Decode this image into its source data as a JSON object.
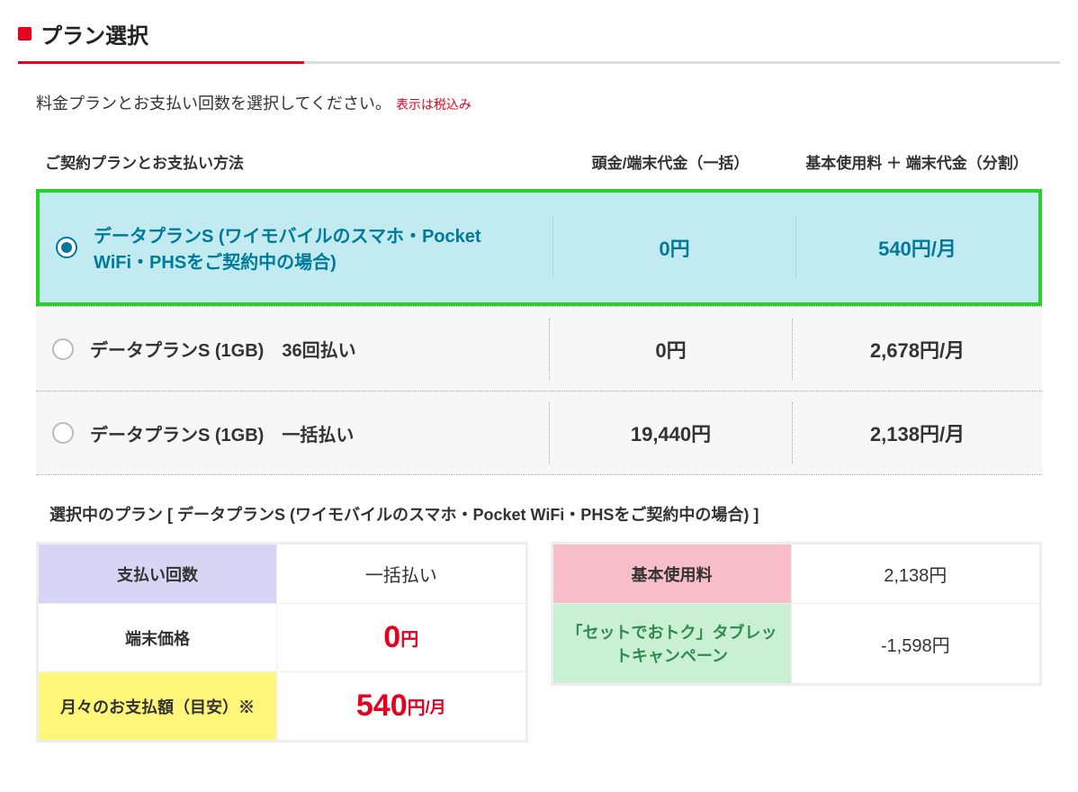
{
  "section": {
    "title": "プラン選択",
    "instruction": "料金プランとお支払い回数を選択してください。",
    "tax_note": "表示は税込み"
  },
  "headers": {
    "plan": "ご契約プランとお支払い方法",
    "down": "頭金/端末代金（一括）",
    "monthly": "基本使用料 ＋ 端末代金（分割）"
  },
  "plans": [
    {
      "label": "データプランS (ワイモバイルのスマホ・Pocket WiFi・PHSをご契約中の場合)",
      "down": "0円",
      "monthly": "540円/月",
      "selected": true
    },
    {
      "label": "データプランS (1GB)　36回払い",
      "down": "0円",
      "monthly": "2,678円/月",
      "selected": false
    },
    {
      "label": "データプランS (1GB)　一括払い",
      "down": "19,440円",
      "monthly": "2,138円/月",
      "selected": false
    }
  ],
  "selected_label": "選択中のプラン [ データプランS (ワイモバイルのスマホ・Pocket WiFi・PHSをご契約中の場合) ]",
  "summary_left": [
    {
      "label": "支払い回数",
      "value": "一括払い",
      "label_bg": "bg-purple",
      "value_class": ""
    },
    {
      "label": "端末価格",
      "value_num": "0",
      "value_unit": "円",
      "value_class": "val-red"
    },
    {
      "label": "月々のお支払額（目安）※",
      "value_num": "540",
      "value_unit": "円",
      "value_per": "/月",
      "label_bg": "bg-yellow",
      "value_class": "val-red"
    }
  ],
  "summary_right": [
    {
      "label": "基本使用料",
      "value": "2,138円",
      "label_bg": "bg-pink"
    },
    {
      "label": "「セットでおトク」タブレットキャンペーン",
      "value": "-1,598円",
      "label_bg": "bg-green"
    }
  ],
  "colors": {
    "accent_red": "#e4001e",
    "select_teal": "#007a9c",
    "select_border": "#2bcf2b",
    "select_bg": "#c1ebf1"
  }
}
